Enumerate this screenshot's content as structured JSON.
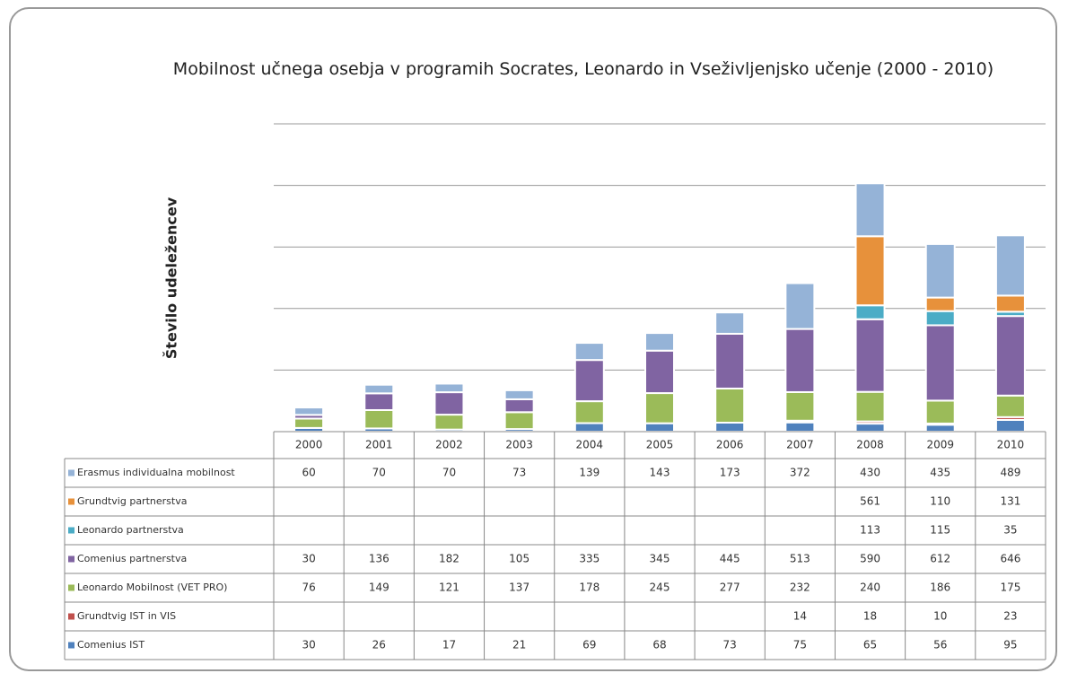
{
  "chart_data": {
    "type": "bar",
    "stacked": true,
    "title": "Mobilnost učnega osebja v programih Socrates, Leonardo in Vseživljenjsko učenje (2000 - 2010)",
    "ylabel": "Število udeležencev",
    "categories": [
      "2000",
      "2001",
      "2002",
      "2003",
      "2004",
      "2005",
      "2006",
      "2007",
      "2008",
      "2009",
      "2010"
    ],
    "ylim": [
      0,
      2500
    ],
    "yticks": [
      0,
      500,
      1000,
      1500,
      2000,
      2500
    ],
    "grid": true,
    "series": [
      {
        "name": "Erasmus individualna mobilnost",
        "color": "#95b3d7",
        "values": [
          60,
          70,
          70,
          73,
          139,
          143,
          173,
          372,
          430,
          435,
          489
        ]
      },
      {
        "name": "Grundtvig partnerstva",
        "color": "#e7913b",
        "values": [
          null,
          null,
          null,
          null,
          null,
          null,
          null,
          null,
          561,
          110,
          131
        ]
      },
      {
        "name": "Leonardo partnerstva",
        "color": "#4bacc6",
        "values": [
          null,
          null,
          null,
          null,
          null,
          null,
          null,
          null,
          113,
          115,
          35
        ]
      },
      {
        "name": "Comenius partnerstva",
        "color": "#8064a2",
        "values": [
          30,
          136,
          182,
          105,
          335,
          345,
          445,
          513,
          590,
          612,
          646
        ]
      },
      {
        "name": "Leonardo Mobilnost (VET PRO)",
        "color": "#9bbb59",
        "values": [
          76,
          149,
          121,
          137,
          178,
          245,
          277,
          232,
          240,
          186,
          175
        ]
      },
      {
        "name": "Grundtvig IST in VIS",
        "color": "#c0504d",
        "values": [
          null,
          null,
          null,
          null,
          null,
          null,
          null,
          14,
          18,
          10,
          23
        ]
      },
      {
        "name": "Comenius IST",
        "color": "#4f81bd",
        "values": [
          30,
          26,
          17,
          21,
          69,
          68,
          73,
          75,
          65,
          56,
          95
        ]
      }
    ]
  }
}
